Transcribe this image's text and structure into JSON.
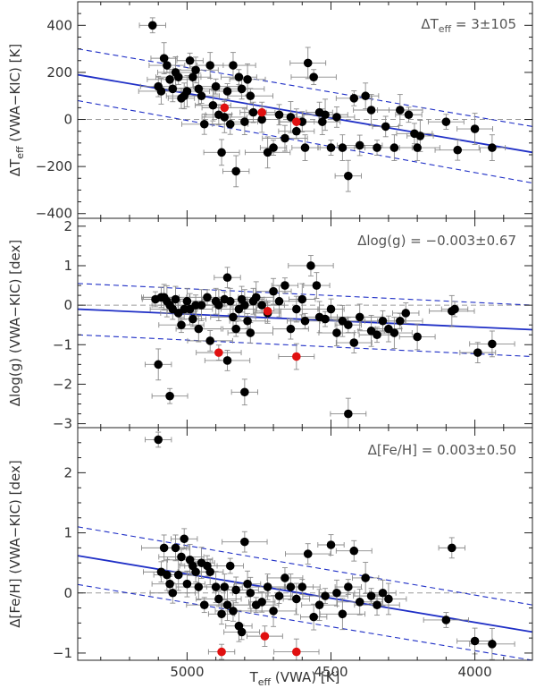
{
  "figure": {
    "x_label_main": "T",
    "x_label_sub": "eff",
    "x_label_rest": " (VWA) [K]",
    "colors": {
      "normal": "#000000",
      "highlight": "#e01010",
      "fit": "#1f2fc6",
      "zero": "#9a9a9a",
      "error": "#8a8a8a"
    }
  },
  "chart_data": [
    {
      "type": "scatter",
      "panel": "top",
      "ylabel_pre": "ΔT",
      "ylabel_sub": "eff",
      "ylabel_post": " (VWA−KIC) [K]",
      "annotation_pre": "ΔT",
      "annotation_sub": "eff",
      "annotation_post": " = 3±105",
      "xlim": [
        5380,
        3800
      ],
      "ylim": [
        -420,
        500
      ],
      "x_ticks": [
        5000,
        4500,
        4000
      ],
      "x_tick_labels": [
        "",
        "",
        ""
      ],
      "y_ticks": [
        -400,
        -200,
        0,
        200,
        400
      ],
      "y_tick_labels": [
        "−400",
        "−200",
        "0",
        "200",
        "400"
      ],
      "fit": {
        "x": [
          5380,
          3800
        ],
        "y": [
          190,
          -140
        ]
      },
      "band_upper": {
        "x": [
          5380,
          3800
        ],
        "y": [
          300,
          -30
        ]
      },
      "band_lower": {
        "x": [
          5380,
          3800
        ],
        "y": [
          80,
          -270
        ]
      },
      "points": [
        {
          "x": 5120,
          "y": 400
        },
        {
          "x": 5100,
          "y": 140
        },
        {
          "x": 5090,
          "y": 120
        },
        {
          "x": 5080,
          "y": 260
        },
        {
          "x": 5070,
          "y": 230
        },
        {
          "x": 5060,
          "y": 170
        },
        {
          "x": 5050,
          "y": 130
        },
        {
          "x": 5040,
          "y": 200
        },
        {
          "x": 5030,
          "y": 180
        },
        {
          "x": 5020,
          "y": 90
        },
        {
          "x": 5010,
          "y": 100
        },
        {
          "x": 5000,
          "y": 120
        },
        {
          "x": 4990,
          "y": 250
        },
        {
          "x": 4980,
          "y": 180
        },
        {
          "x": 4970,
          "y": 210
        },
        {
          "x": 4960,
          "y": 130
        },
        {
          "x": 4950,
          "y": 100
        },
        {
          "x": 4940,
          "y": -20
        },
        {
          "x": 4920,
          "y": 230
        },
        {
          "x": 4910,
          "y": 60
        },
        {
          "x": 4900,
          "y": 140
        },
        {
          "x": 4890,
          "y": 20
        },
        {
          "x": 4880,
          "y": -140
        },
        {
          "x": 4870,
          "y": 10
        },
        {
          "x": 4860,
          "y": 120
        },
        {
          "x": 4850,
          "y": -20
        },
        {
          "x": 4840,
          "y": 230
        },
        {
          "x": 4830,
          "y": -220
        },
        {
          "x": 4820,
          "y": 180
        },
        {
          "x": 4810,
          "y": 130
        },
        {
          "x": 4800,
          "y": -10
        },
        {
          "x": 4790,
          "y": 170
        },
        {
          "x": 4780,
          "y": 100
        },
        {
          "x": 4770,
          "y": 30
        },
        {
          "x": 4740,
          "y": 0
        },
        {
          "x": 4720,
          "y": -140
        },
        {
          "x": 4700,
          "y": -120
        },
        {
          "x": 4680,
          "y": 20
        },
        {
          "x": 4660,
          "y": -80
        },
        {
          "x": 4640,
          "y": 10
        },
        {
          "x": 4620,
          "y": -50
        },
        {
          "x": 4600,
          "y": -10
        },
        {
          "x": 4590,
          "y": -120
        },
        {
          "x": 4580,
          "y": 240
        },
        {
          "x": 4560,
          "y": 180
        },
        {
          "x": 4540,
          "y": 30
        },
        {
          "x": 4530,
          "y": -10
        },
        {
          "x": 4520,
          "y": 20
        },
        {
          "x": 4500,
          "y": -120
        },
        {
          "x": 4480,
          "y": 10
        },
        {
          "x": 4460,
          "y": -120
        },
        {
          "x": 4440,
          "y": -240
        },
        {
          "x": 4420,
          "y": 90
        },
        {
          "x": 4400,
          "y": -110
        },
        {
          "x": 4380,
          "y": 100
        },
        {
          "x": 4360,
          "y": 40
        },
        {
          "x": 4340,
          "y": -120
        },
        {
          "x": 4310,
          "y": -30
        },
        {
          "x": 4280,
          "y": -120
        },
        {
          "x": 4260,
          "y": 40
        },
        {
          "x": 4230,
          "y": 20
        },
        {
          "x": 4210,
          "y": -60
        },
        {
          "x": 4200,
          "y": -120
        },
        {
          "x": 4190,
          "y": -70
        },
        {
          "x": 4100,
          "y": -10
        },
        {
          "x": 4060,
          "y": -130
        },
        {
          "x": 3940,
          "y": -120
        },
        {
          "x": 4000,
          "y": -40
        },
        {
          "x": 4870,
          "y": 50,
          "red": true
        },
        {
          "x": 4740,
          "y": 30,
          "red": true
        },
        {
          "x": 4620,
          "y": -10,
          "red": true
        }
      ]
    },
    {
      "type": "scatter",
      "panel": "middle",
      "ylabel_pre": "Δlog(g)",
      "ylabel_sub": "",
      "ylabel_post": " (VWA−KIC) [dex]",
      "annotation_pre": "Δlog(g) = −0.003±0.67",
      "annotation_sub": "",
      "annotation_post": "",
      "xlim": [
        5380,
        3800
      ],
      "ylim": [
        -3.1,
        2.2
      ],
      "x_ticks": [
        5000,
        4500,
        4000
      ],
      "x_tick_labels": [
        "",
        "",
        ""
      ],
      "y_ticks": [
        -3,
        -2,
        -1,
        0,
        1,
        2
      ],
      "y_tick_labels": [
        "−3",
        "−2",
        "−1",
        "0",
        "1",
        "2"
      ],
      "fit": {
        "x": [
          5380,
          3800
        ],
        "y": [
          -0.1,
          -0.62
        ]
      },
      "band_upper": {
        "x": [
          5380,
          3800
        ],
        "y": [
          0.55,
          0.0
        ]
      },
      "band_lower": {
        "x": [
          5380,
          3800
        ],
        "y": [
          -0.75,
          -1.3
        ]
      },
      "points": [
        {
          "x": 5110,
          "y": 0.15
        },
        {
          "x": 5090,
          "y": 0.2
        },
        {
          "x": 5080,
          "y": 0.2
        },
        {
          "x": 5070,
          "y": 0.1
        },
        {
          "x": 5060,
          "y": 0.0
        },
        {
          "x": 5050,
          "y": -0.1
        },
        {
          "x": 5040,
          "y": 0.15
        },
        {
          "x": 5030,
          "y": -0.2
        },
        {
          "x": 5020,
          "y": -0.5
        },
        {
          "x": 5010,
          "y": -0.1
        },
        {
          "x": 5000,
          "y": 0.1
        },
        {
          "x": 4990,
          "y": -0.1
        },
        {
          "x": 4980,
          "y": -0.35
        },
        {
          "x": 4970,
          "y": 0.0
        },
        {
          "x": 4960,
          "y": -0.6
        },
        {
          "x": 4950,
          "y": 0.0
        },
        {
          "x": 4930,
          "y": 0.2
        },
        {
          "x": 4920,
          "y": -0.9
        },
        {
          "x": 4900,
          "y": 0.1
        },
        {
          "x": 4890,
          "y": 0.0
        },
        {
          "x": 4870,
          "y": 0.15
        },
        {
          "x": 4860,
          "y": 0.7
        },
        {
          "x": 4850,
          "y": 0.1
        },
        {
          "x": 4840,
          "y": -0.3
        },
        {
          "x": 4830,
          "y": -0.6
        },
        {
          "x": 4820,
          "y": -0.1
        },
        {
          "x": 4810,
          "y": 0.15
        },
        {
          "x": 4800,
          "y": 0.0
        },
        {
          "x": 4790,
          "y": -0.4
        },
        {
          "x": 4780,
          "y": -0.7
        },
        {
          "x": 4770,
          "y": 0.1
        },
        {
          "x": 4760,
          "y": 0.2
        },
        {
          "x": 4740,
          "y": 0.0
        },
        {
          "x": 4720,
          "y": -0.2
        },
        {
          "x": 4700,
          "y": 0.35
        },
        {
          "x": 4680,
          "y": 0.1
        },
        {
          "x": 4660,
          "y": 0.5
        },
        {
          "x": 4640,
          "y": -0.6
        },
        {
          "x": 4620,
          "y": -0.1
        },
        {
          "x": 4600,
          "y": 0.15
        },
        {
          "x": 4590,
          "y": -0.4
        },
        {
          "x": 4570,
          "y": 1.0
        },
        {
          "x": 4550,
          "y": 0.5
        },
        {
          "x": 4540,
          "y": -0.3
        },
        {
          "x": 4520,
          "y": -0.35
        },
        {
          "x": 4500,
          "y": -0.1
        },
        {
          "x": 4480,
          "y": -0.7
        },
        {
          "x": 4460,
          "y": -0.4
        },
        {
          "x": 4440,
          "y": -0.5
        },
        {
          "x": 4420,
          "y": -0.95
        },
        {
          "x": 4400,
          "y": -0.3
        },
        {
          "x": 4360,
          "y": -0.65
        },
        {
          "x": 4340,
          "y": -0.75
        },
        {
          "x": 4320,
          "y": -0.4
        },
        {
          "x": 4300,
          "y": -0.6
        },
        {
          "x": 4280,
          "y": -0.7
        },
        {
          "x": 4260,
          "y": -0.4
        },
        {
          "x": 4240,
          "y": -0.2
        },
        {
          "x": 4200,
          "y": -0.8
        },
        {
          "x": 4080,
          "y": -0.15
        },
        {
          "x": 4070,
          "y": -0.1
        },
        {
          "x": 3990,
          "y": -1.2
        },
        {
          "x": 3940,
          "y": -0.98
        },
        {
          "x": 5100,
          "y": -1.5
        },
        {
          "x": 5060,
          "y": -2.3
        },
        {
          "x": 4860,
          "y": -1.4
        },
        {
          "x": 4800,
          "y": -2.2
        },
        {
          "x": 4440,
          "y": -2.75
        },
        {
          "x": 4890,
          "y": -1.2,
          "red": true
        },
        {
          "x": 4720,
          "y": -0.15,
          "red": true
        },
        {
          "x": 4620,
          "y": -1.3,
          "red": true
        }
      ]
    },
    {
      "type": "scatter",
      "panel": "bottom",
      "ylabel_pre": "Δ[Fe/H]",
      "ylabel_sub": "",
      "ylabel_post": " (VWA−KIC) [dex]",
      "annotation_pre": "Δ[Fe/H] = 0.003±0.50",
      "annotation_sub": "",
      "annotation_post": "",
      "xlim": [
        5380,
        3800
      ],
      "ylim": [
        -1.12,
        2.75
      ],
      "x_ticks": [
        5000,
        4500,
        4000
      ],
      "x_tick_labels": [
        "5000",
        "4500",
        "4000"
      ],
      "y_ticks": [
        -1,
        0,
        1,
        2
      ],
      "y_tick_labels": [
        "−1",
        "0",
        "1",
        "2"
      ],
      "fit": {
        "x": [
          5380,
          3800
        ],
        "y": [
          0.62,
          -0.65
        ]
      },
      "band_upper": {
        "x": [
          5380,
          3800
        ],
        "y": [
          1.1,
          -0.2
        ]
      },
      "band_lower": {
        "x": [
          5380,
          3800
        ],
        "y": [
          0.14,
          -1.12
        ]
      },
      "points": [
        {
          "x": 5100,
          "y": 2.55
        },
        {
          "x": 5090,
          "y": 0.35
        },
        {
          "x": 5080,
          "y": 0.75
        },
        {
          "x": 5070,
          "y": 0.3
        },
        {
          "x": 5060,
          "y": 0.15
        },
        {
          "x": 5050,
          "y": 0.0
        },
        {
          "x": 5040,
          "y": 0.75
        },
        {
          "x": 5030,
          "y": 0.3
        },
        {
          "x": 5020,
          "y": 0.6
        },
        {
          "x": 5010,
          "y": 0.9
        },
        {
          "x": 5000,
          "y": 0.15
        },
        {
          "x": 4990,
          "y": 0.55
        },
        {
          "x": 4980,
          "y": 0.45
        },
        {
          "x": 4970,
          "y": 0.35
        },
        {
          "x": 4960,
          "y": 0.1
        },
        {
          "x": 4950,
          "y": 0.5
        },
        {
          "x": 4940,
          "y": -0.2
        },
        {
          "x": 4930,
          "y": 0.45
        },
        {
          "x": 4920,
          "y": 0.35
        },
        {
          "x": 4900,
          "y": 0.1
        },
        {
          "x": 4890,
          "y": -0.1
        },
        {
          "x": 4880,
          "y": -0.35
        },
        {
          "x": 4870,
          "y": 0.1
        },
        {
          "x": 4860,
          "y": -0.2
        },
        {
          "x": 4850,
          "y": 0.45
        },
        {
          "x": 4840,
          "y": -0.3
        },
        {
          "x": 4830,
          "y": 0.05
        },
        {
          "x": 4820,
          "y": -0.55
        },
        {
          "x": 4810,
          "y": -0.65
        },
        {
          "x": 4800,
          "y": 0.85
        },
        {
          "x": 4790,
          "y": 0.15
        },
        {
          "x": 4780,
          "y": 0.0
        },
        {
          "x": 4760,
          "y": -0.2
        },
        {
          "x": 4740,
          "y": -0.15
        },
        {
          "x": 4720,
          "y": 0.1
        },
        {
          "x": 4700,
          "y": -0.3
        },
        {
          "x": 4680,
          "y": -0.05
        },
        {
          "x": 4660,
          "y": 0.25
        },
        {
          "x": 4640,
          "y": 0.1
        },
        {
          "x": 4620,
          "y": -0.1
        },
        {
          "x": 4600,
          "y": 0.1
        },
        {
          "x": 4580,
          "y": 0.65
        },
        {
          "x": 4560,
          "y": -0.4
        },
        {
          "x": 4540,
          "y": -0.2
        },
        {
          "x": 4520,
          "y": -0.05
        },
        {
          "x": 4500,
          "y": 0.8
        },
        {
          "x": 4480,
          "y": 0.0
        },
        {
          "x": 4460,
          "y": -0.35
        },
        {
          "x": 4440,
          "y": 0.1
        },
        {
          "x": 4420,
          "y": 0.7
        },
        {
          "x": 4400,
          "y": -0.15
        },
        {
          "x": 4380,
          "y": 0.25
        },
        {
          "x": 4360,
          "y": -0.05
        },
        {
          "x": 4340,
          "y": -0.2
        },
        {
          "x": 4320,
          "y": 0.0
        },
        {
          "x": 4300,
          "y": -0.1
        },
        {
          "x": 4100,
          "y": -0.45
        },
        {
          "x": 4080,
          "y": 0.75
        },
        {
          "x": 4000,
          "y": -0.8
        },
        {
          "x": 3940,
          "y": -0.85
        },
        {
          "x": 4880,
          "y": -0.98,
          "red": true
        },
        {
          "x": 4730,
          "y": -0.72,
          "red": true
        },
        {
          "x": 4620,
          "y": -0.98,
          "red": true
        }
      ]
    }
  ]
}
